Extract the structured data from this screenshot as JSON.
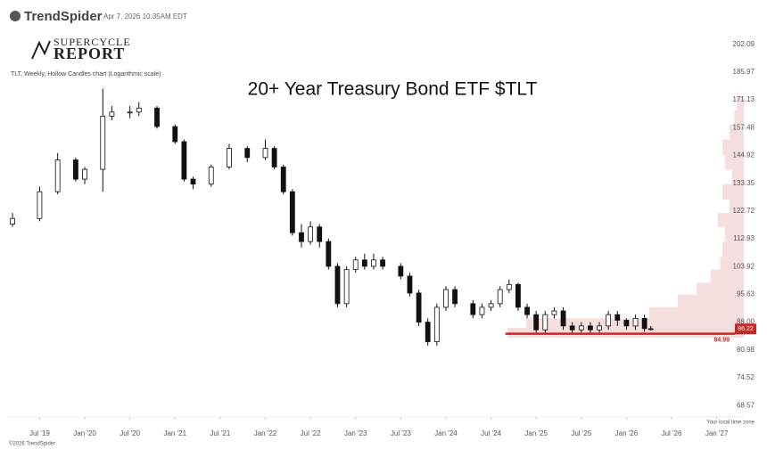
{
  "header": {
    "brand": "TrendSpider",
    "timestamp": "Apr 7, 2026 10:35AM EDT"
  },
  "logo": {
    "line1": "SUPERCYCLE",
    "line2": "REPORT"
  },
  "footer": {
    "copyright": "©2026 TrendSpider",
    "timezone_note": "Your local time zone"
  },
  "chart_data": {
    "type": "candlestick",
    "subtitle": "TLT, Weekly, Hollow Candles chart (Logarithmic scale)",
    "title": "20+ Year Treasury Bond ETF $TLT",
    "log_scale": true,
    "up_color": "#ffffff",
    "down_color": "#111111",
    "wick_color": "#111111",
    "x": [
      2019.2,
      2019.5,
      2019.7,
      2019.9,
      2020.0,
      2020.2,
      2020.3,
      2020.5,
      2020.6,
      2020.8,
      2021.0,
      2021.1,
      2021.2,
      2021.4,
      2021.6,
      2021.8,
      2022.0,
      2022.1,
      2022.2,
      2022.3,
      2022.4,
      2022.5,
      2022.6,
      2022.7,
      2022.8,
      2022.9,
      2023.0,
      2023.1,
      2023.2,
      2023.3,
      2023.5,
      2023.6,
      2023.7,
      2023.8,
      2023.9,
      2024.0,
      2024.1,
      2024.3,
      2024.4,
      2024.5,
      2024.6,
      2024.7,
      2024.8,
      2024.9,
      2025.0,
      2025.1,
      2025.2,
      2025.3,
      2025.4,
      2025.5,
      2025.6,
      2025.7,
      2025.8,
      2025.9,
      2026.0,
      2026.1,
      2026.2,
      2026.27
    ],
    "open": [
      118,
      120,
      130,
      143,
      135,
      139,
      163,
      165,
      165,
      167,
      158,
      151,
      135,
      133,
      140,
      148,
      144,
      148,
      140,
      130,
      115,
      112,
      117,
      112,
      104,
      93,
      103,
      106,
      104,
      106,
      104,
      101,
      96,
      88,
      83,
      92,
      97,
      93,
      90,
      92,
      93,
      97,
      98.5,
      92,
      90,
      86,
      90,
      91,
      87,
      86,
      87,
      86,
      87,
      90,
      88.5,
      87,
      89,
      86.3
    ],
    "high": [
      122,
      132,
      146,
      144,
      140,
      177,
      168,
      168,
      170,
      168,
      159,
      152,
      136,
      141,
      150,
      149,
      152,
      149,
      141,
      131,
      118,
      119,
      118,
      113,
      105,
      104,
      107,
      108,
      108,
      107,
      105,
      102,
      97,
      89,
      93,
      98,
      98,
      94,
      93,
      94,
      98,
      100,
      99,
      93,
      91,
      91,
      92,
      92,
      88,
      88,
      88,
      88,
      91,
      91,
      89,
      90,
      90,
      87
    ],
    "low": [
      117,
      119,
      129,
      134,
      133,
      130,
      161,
      162,
      163,
      157,
      150,
      134,
      131,
      132,
      139,
      142,
      143,
      139,
      129,
      114,
      110,
      111,
      110,
      103,
      92,
      92,
      102,
      103,
      103,
      103,
      100,
      95,
      87,
      82,
      82,
      91,
      92,
      89,
      89,
      91,
      92,
      96,
      91,
      89,
      85,
      85,
      89,
      86,
      85,
      85,
      85,
      85,
      86,
      87,
      86,
      86,
      85.5,
      85.8
    ],
    "close": [
      120,
      130,
      143,
      135,
      139,
      163,
      165,
      165,
      167,
      158,
      151,
      135,
      133,
      140,
      148,
      144,
      148,
      140,
      130,
      115,
      112,
      117,
      112,
      104,
      93,
      103,
      106,
      104,
      106,
      104,
      101,
      96,
      88,
      83,
      92,
      97,
      93,
      90,
      92,
      93,
      97,
      98.5,
      92,
      90,
      86,
      90,
      91,
      87,
      86,
      87,
      86,
      87,
      90,
      88.5,
      87,
      89,
      86.3,
      86.22
    ],
    "xlim": [
      2019.16,
      2027.3
    ],
    "ylim": [
      66.8,
      213
    ],
    "xticks": [
      {
        "value": 2019.5,
        "label": "Jul '19"
      },
      {
        "value": 2020.0,
        "label": "Jan '20"
      },
      {
        "value": 2020.5,
        "label": "Jul '20"
      },
      {
        "value": 2021.0,
        "label": "Jan '21"
      },
      {
        "value": 2021.5,
        "label": "Jul '21"
      },
      {
        "value": 2022.0,
        "label": "Jan '22"
      },
      {
        "value": 2022.5,
        "label": "Jul '22"
      },
      {
        "value": 2023.0,
        "label": "Jan '23"
      },
      {
        "value": 2023.5,
        "label": "Jul '23"
      },
      {
        "value": 2024.0,
        "label": "Jan '24"
      },
      {
        "value": 2024.5,
        "label": "Jul '24"
      },
      {
        "value": 2025.0,
        "label": "Jan '25"
      },
      {
        "value": 2025.5,
        "label": "Jul '25"
      },
      {
        "value": 2026.0,
        "label": "Jan '26"
      },
      {
        "value": 2026.5,
        "label": "Jul '26"
      },
      {
        "value": 2027.0,
        "label": "Jan '27"
      }
    ],
    "yticks": [
      202.09,
      185.97,
      171.13,
      157.48,
      144.92,
      133.35,
      122.72,
      112.93,
      103.92,
      95.63,
      {
        "value": 88,
        "label": "88.00"
      },
      80.98,
      74.52,
      68.57
    ],
    "current_price": 86.22,
    "current_price_color": "#c62828",
    "support": {
      "value": 84.99,
      "x_start": 2024.66,
      "color": "#c62828"
    },
    "volume_profile": {
      "bins": [
        84,
        86.5,
        89,
        92,
        95.5,
        99,
        103,
        107,
        112,
        117,
        122,
        127,
        133,
        139,
        145,
        152,
        159,
        166,
        173
      ],
      "volumes": [
        100,
        92,
        40,
        28,
        20,
        14,
        10,
        9,
        8,
        11,
        6,
        9,
        5,
        8,
        9,
        6,
        4,
        3
      ],
      "vlim": [
        0,
        100
      ],
      "color": "#f3d6d6"
    }
  }
}
